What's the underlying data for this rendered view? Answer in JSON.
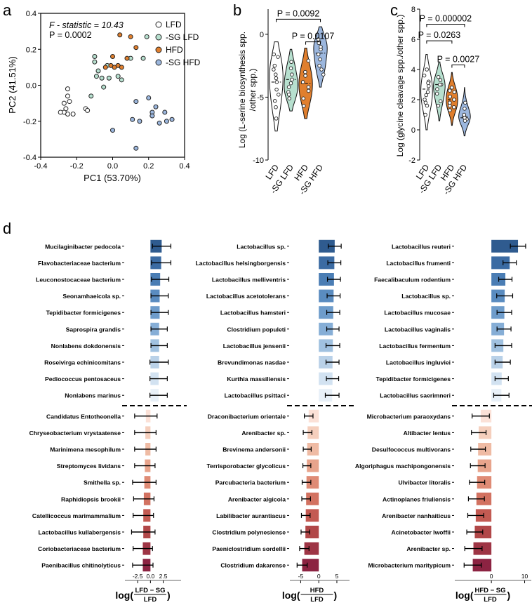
{
  "colors": {
    "lfd": "#ffffff",
    "sglfd": "#b7e0cf",
    "hfd": "#e07f2e",
    "sghfd": "#9cb7de",
    "pos": "#2f5b8f",
    "neg": "#8c2342",
    "axis": "#9a9a9a"
  },
  "panels": {
    "a": "a",
    "b": "b",
    "c": "c",
    "d": "d"
  },
  "chart_data": [
    {
      "id": "a",
      "type": "scatter",
      "stat_line1": "F - statistic = 10.43",
      "stat_line2": "P = 0.0002",
      "xlabel": "PC1 (53.70%)",
      "ylabel": "PC2 (41.51%)",
      "xlim": [
        -0.4,
        0.4
      ],
      "ylim": [
        -0.4,
        0.4
      ],
      "xticks": [
        "-0.4",
        "-0.2",
        "0.0",
        "0.2",
        "0.4"
      ],
      "yticks": [
        "-0.4",
        "-0.2",
        "0.0",
        "0.2",
        "0.4"
      ],
      "series": [
        {
          "name": "LFD",
          "color": "#ffffff",
          "points": [
            [
              -0.27,
              -0.1
            ],
            [
              -0.25,
              -0.06
            ],
            [
              -0.24,
              -0.09
            ],
            [
              -0.22,
              -0.16
            ],
            [
              -0.25,
              -0.16
            ],
            [
              -0.26,
              -0.13
            ],
            [
              -0.27,
              -0.15
            ],
            [
              -0.25,
              -0.02
            ],
            [
              -0.15,
              -0.13
            ],
            [
              -0.14,
              -0.14
            ],
            [
              -0.29,
              -0.15
            ]
          ]
        },
        {
          "name": "-SG LFD",
          "color": "#b7e0cf",
          "points": [
            [
              -0.1,
              0.16
            ],
            [
              -0.1,
              0.13
            ],
            [
              -0.08,
              0.08
            ],
            [
              -0.09,
              0.05
            ],
            [
              -0.06,
              0.04
            ],
            [
              -0.03,
              0.11
            ],
            [
              -0.02,
              0.04
            ],
            [
              0.03,
              0.05
            ],
            [
              0.05,
              0.03
            ],
            [
              -0.12,
              -0.06
            ],
            [
              -0.05,
              -0.01
            ],
            [
              0.1,
              0.15
            ],
            [
              0.17,
              0.15
            ],
            [
              0.19,
              0.27
            ]
          ]
        },
        {
          "name": "HFD",
          "color": "#e07f2e",
          "points": [
            [
              0.04,
              0.28
            ],
            [
              0.1,
              0.27
            ],
            [
              0.13,
              0.21
            ],
            [
              0.08,
              0.15
            ],
            [
              0.0,
              0.16
            ],
            [
              -0.01,
              0.11
            ],
            [
              0.01,
              0.1
            ],
            [
              0.03,
              0.11
            ],
            [
              0.05,
              0.1
            ],
            [
              -0.04,
              0.1
            ]
          ]
        },
        {
          "name": "-SG HFD",
          "color": "#9cb7de",
          "points": [
            [
              0.0,
              -0.25
            ],
            [
              0.2,
              -0.07
            ],
            [
              0.24,
              -0.12
            ],
            [
              0.22,
              -0.15
            ],
            [
              0.26,
              -0.21
            ],
            [
              0.29,
              -0.15
            ],
            [
              0.33,
              -0.19
            ],
            [
              0.3,
              -0.2
            ],
            [
              0.22,
              -0.17
            ],
            [
              0.13,
              -0.09
            ],
            [
              0.11,
              -0.19
            ],
            [
              0.15,
              -0.2
            ],
            [
              0.13,
              -0.35
            ]
          ]
        }
      ]
    },
    {
      "id": "b",
      "type": "violin",
      "ylabel_line1": "Log (L-serine biosynthesis spp.",
      "ylabel_line2": "/other spp.)",
      "ylim": [
        -10,
        2
      ],
      "yticks": [
        "-10",
        "-5",
        "0"
      ],
      "categories": [
        "LFD",
        "-SG LFD",
        "HFD",
        "-SG HFD"
      ],
      "colors": [
        "#ffffff",
        "#b7e0cf",
        "#e07f2e",
        "#9cb7de"
      ],
      "median": [
        -3.8,
        -3.6,
        -3.9,
        -1.5
      ],
      "values": [
        [
          -3.5,
          -4.4,
          -1.6,
          -2.5,
          -5.8,
          -6.7,
          -2.8,
          -4.8,
          -3.8,
          -3.2,
          -5.3,
          -1.8
        ],
        [
          -3.2,
          -4.6,
          -2.7,
          -5.1,
          -3.6,
          -4.2,
          -2.2,
          -3.9,
          -4.8
        ],
        [
          -3.8,
          -2.1,
          -4.5,
          -5.1,
          -3.3,
          -4.2,
          -5.7,
          -3.0
        ],
        [
          -1.2,
          -2.8,
          -0.6,
          -1.6,
          -3.2,
          -2.0,
          -0.7,
          -1.0,
          -2.5,
          -0.4
        ]
      ],
      "brackets": [
        {
          "from": 0,
          "to": 3,
          "label": "P = 0.0092",
          "y": 1.2
        },
        {
          "from": 2,
          "to": 3,
          "label": "P = 0.0107",
          "y": -0.6
        }
      ]
    },
    {
      "id": "c",
      "type": "violin",
      "ylabel": "Log (glycine cleavage spp./other spp.)",
      "ylim": [
        -2,
        8
      ],
      "yticks": [
        "-2",
        "0",
        "2",
        "4",
        "6",
        "8"
      ],
      "categories": [
        "LFD",
        "-SG LFD",
        "HFD",
        "-SG HFD"
      ],
      "colors": [
        "#ffffff",
        "#b7e0cf",
        "#e07f2e",
        "#9cb7de"
      ],
      "median": [
        2.7,
        3.0,
        2.0,
        0.8
      ],
      "values": [
        [
          2.5,
          1.6,
          3.2,
          4.0,
          2.0,
          2.9,
          1.0,
          3.6,
          2.3,
          1.8,
          3.1
        ],
        [
          3.0,
          2.7,
          1.9,
          3.3,
          2.4,
          3.5,
          1.6,
          3.0
        ],
        [
          2.5,
          1.6,
          2.2,
          1.8,
          2.8,
          1.3,
          2.6,
          2.0,
          1.5
        ],
        [
          0.9,
          0.8,
          0.7,
          1.0,
          1.4,
          1.8,
          0.6,
          0.8
        ]
      ],
      "brackets": [
        {
          "from": 0,
          "to": 3,
          "label": "P = 0.000002",
          "y": 7.0
        },
        {
          "from": 0,
          "to": 2,
          "label": "P = 0.0263",
          "y": 5.9
        },
        {
          "from": 2,
          "to": 3,
          "label": "P = 0.0027",
          "y": 4.3
        }
      ]
    },
    {
      "id": "d1",
      "type": "bar",
      "orientation": "horizontal",
      "xlabel_num": "LFD − SG",
      "xlabel_den": "LFD",
      "xticks": [
        "-2.5",
        "0.0",
        "2.5"
      ],
      "xlim": [
        -5,
        6
      ],
      "categories": [
        "Mucilaginibacter pedocola",
        "Flavobacteriaceae bacterium",
        "Leuconostocaceae bacterium",
        "Seonamhaeicola sp.",
        "Tepidibacter formicigenes",
        "Saprospira grandis",
        "Nonlabens dokdonensis",
        "Roseivirga echinicomitans",
        "Pediococcus pentosaceus",
        "Nonlabens marinus",
        "Candidatus Entotheonella",
        "Chryseobacterium vrystaatense",
        "Marinimena mesophilum",
        "Streptomyces lividans",
        "Smithella sp.",
        "Raphidiopsis brookii",
        "Catellicoccus marimammalium",
        "Lactobacillus kullabergensis",
        "Coriobacteriaceae bacterium",
        "Paenibacillus chitinolyticus"
      ],
      "values": [
        2.2,
        2.1,
        1.9,
        1.8,
        1.8,
        1.7,
        1.7,
        1.7,
        1.6,
        1.6,
        -0.9,
        -1.0,
        -1.0,
        -1.1,
        -1.2,
        -1.3,
        -1.4,
        -1.4,
        -1.5,
        -1.5
      ],
      "err": [
        1.8,
        1.9,
        1.7,
        1.7,
        1.7,
        1.6,
        1.6,
        1.8,
        1.7,
        1.7,
        2.2,
        2.1,
        2.1,
        2.0,
        2.3,
        2.0,
        2.0,
        2.3,
        1.9,
        2.0
      ]
    },
    {
      "id": "d2",
      "type": "bar",
      "orientation": "horizontal",
      "xlabel_num": "HFD",
      "xlabel_den": "LFD",
      "xticks": [
        "-5",
        "0",
        "5"
      ],
      "xlim": [
        -8,
        8.5
      ],
      "categories": [
        "Lactobacillus sp.",
        "Lactobacillus helsingborgensis",
        "Lactobacillus melliventris",
        "Lactobacillus acetotolerans",
        "Lactobacillus hamsteri",
        "Clostridium populeti",
        "Lactobacillus jensenii",
        "Brevundimonas nasdae",
        "Kurthia massiliensis",
        "Lactobacillus psittaci",
        "Draconibacterium orientale",
        "Arenibacter sp.",
        "Brevinema andersonii",
        "Terrisporobacter glycolicus",
        "Parcubacteria bacterium",
        "Arenibacter algicola",
        "Labilibacter aurantiacus",
        "Clostridium polynesiense",
        "Paeniclostridium sordellii",
        "Clostridium dakarense"
      ],
      "values": [
        4.4,
        4.3,
        4.2,
        4.1,
        4.0,
        3.9,
        3.9,
        3.8,
        3.8,
        3.7,
        -2.8,
        -3.1,
        -3.2,
        -3.3,
        -3.4,
        -3.5,
        -3.6,
        -3.7,
        -4.0,
        -4.6
      ],
      "err": [
        1.8,
        1.8,
        1.8,
        1.8,
        1.8,
        1.7,
        1.9,
        1.8,
        1.7,
        1.9,
        1.2,
        1.2,
        1.1,
        1.1,
        1.2,
        1.2,
        1.2,
        1.2,
        1.3,
        1.4
      ]
    },
    {
      "id": "d3",
      "type": "bar",
      "orientation": "horizontal",
      "xlabel_num": "HFD − SG",
      "xlabel_den": "LFD",
      "xticks": [
        "0",
        "10"
      ],
      "xlim": [
        -11,
        12
      ],
      "categories": [
        "Lactobacillus reuteri",
        "Lactobacillus frumenti",
        "Faecalibaculum rodentium",
        "Lactobacillus sp.",
        "Lactobacillus mucosae",
        "Lactobacillus vaginalis",
        "Lactobacillus fermentum",
        "Lactobacillus ingluviei",
        "Tepidibacter formicigenes",
        "Lactobacillus saerimneri",
        "Microbacterium paraoxydans",
        "Altibacter lentus",
        "Desulfococcus multivorans",
        "Algoriphagus machipongonensis",
        "Ulvibacter litoralis",
        "Actinoplanes friuliensis",
        "Arenibacter nanhaiticus",
        "Acinetobacter lwoffii",
        "Arenibacter sp.",
        "Microbacterium maritypicum"
      ],
      "values": [
        8.0,
        5.5,
        4.2,
        4.0,
        3.9,
        3.8,
        3.6,
        3.4,
        3.1,
        3.0,
        -3.2,
        -3.8,
        -4.0,
        -4.1,
        -4.3,
        -4.5,
        -4.7,
        -5.0,
        -5.4,
        -5.6
      ],
      "err": [
        2.3,
        2.0,
        2.0,
        2.4,
        2.2,
        2.1,
        2.5,
        2.3,
        2.0,
        2.3,
        2.6,
        2.2,
        2.2,
        2.2,
        2.3,
        2.4,
        2.4,
        2.4,
        2.6,
        2.6
      ]
    }
  ]
}
